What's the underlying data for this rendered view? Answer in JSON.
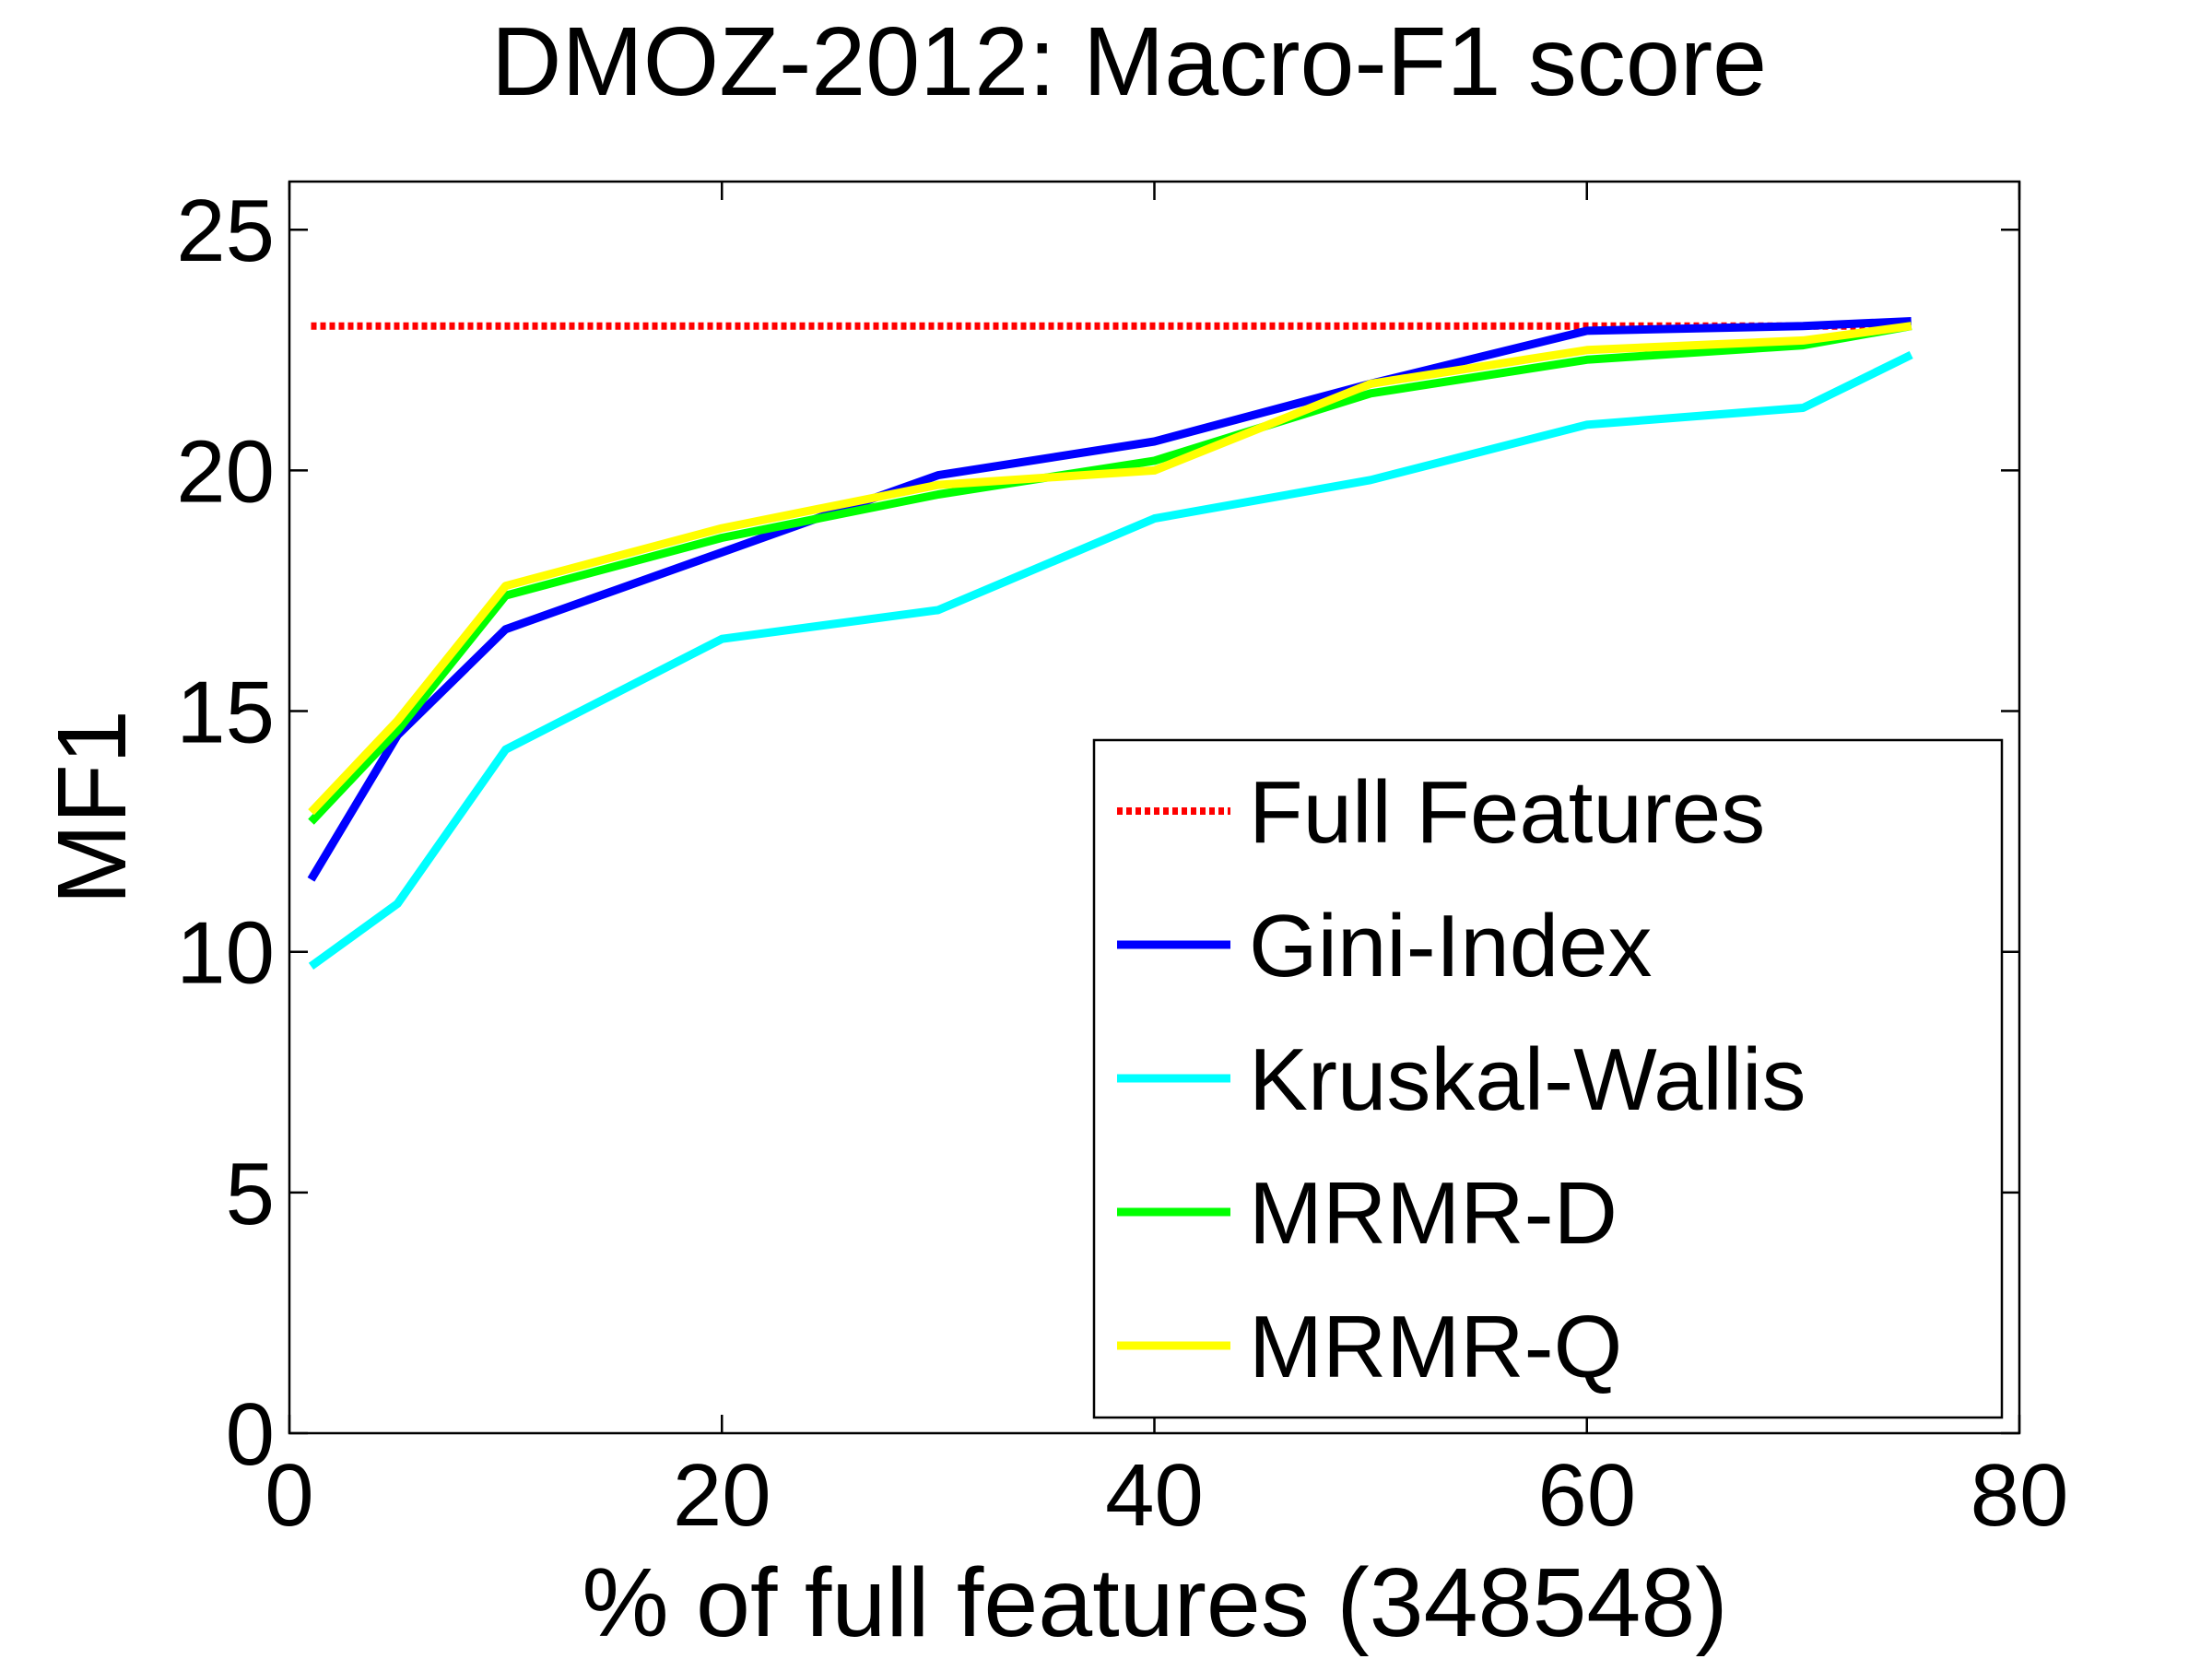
{
  "chart_data": {
    "type": "line",
    "title": "DMOZ-2012: Macro-F1 score",
    "xlabel": "% of full features (348548)",
    "ylabel": "MF1",
    "xlim": [
      0,
      80
    ],
    "ylim": [
      0,
      26
    ],
    "xticks": [
      0,
      20,
      40,
      60,
      80
    ],
    "yticks": [
      0,
      5,
      10,
      15,
      20,
      25
    ],
    "grid": false,
    "legend_position": "bottom-right",
    "series": [
      {
        "name": "Full Features",
        "color": "#ff0000",
        "style": "dotted",
        "x": [
          1,
          75
        ],
        "values": [
          23.0,
          23.0
        ]
      },
      {
        "name": "Gini-Index",
        "color": "#0000ff",
        "style": "solid",
        "x": [
          1,
          5,
          10,
          20,
          30,
          40,
          50,
          60,
          70,
          75
        ],
        "values": [
          11.5,
          14.5,
          16.7,
          18.3,
          19.9,
          20.6,
          21.8,
          22.9,
          23.0,
          23.1
        ]
      },
      {
        "name": "Kruskal-Wallis",
        "color": "#00ffff",
        "style": "solid",
        "x": [
          1,
          5,
          10,
          20,
          30,
          40,
          50,
          60,
          70,
          75
        ],
        "values": [
          9.7,
          11.0,
          14.2,
          16.5,
          17.1,
          19.0,
          19.8,
          20.95,
          21.3,
          22.4
        ]
      },
      {
        "name": "MRMR-D",
        "color": "#00ff00",
        "style": "solid",
        "x": [
          1,
          5,
          10,
          20,
          30,
          40,
          50,
          60,
          70,
          75
        ],
        "values": [
          12.7,
          14.6,
          17.4,
          18.6,
          19.5,
          20.2,
          21.6,
          22.3,
          22.6,
          23.0
        ]
      },
      {
        "name": "MRMR-Q",
        "color": "#ffff00",
        "style": "solid",
        "x": [
          1,
          5,
          10,
          20,
          30,
          40,
          50,
          60,
          70,
          75
        ],
        "values": [
          12.9,
          14.8,
          17.6,
          18.8,
          19.7,
          20.0,
          21.8,
          22.5,
          22.7,
          23.0
        ]
      }
    ]
  }
}
